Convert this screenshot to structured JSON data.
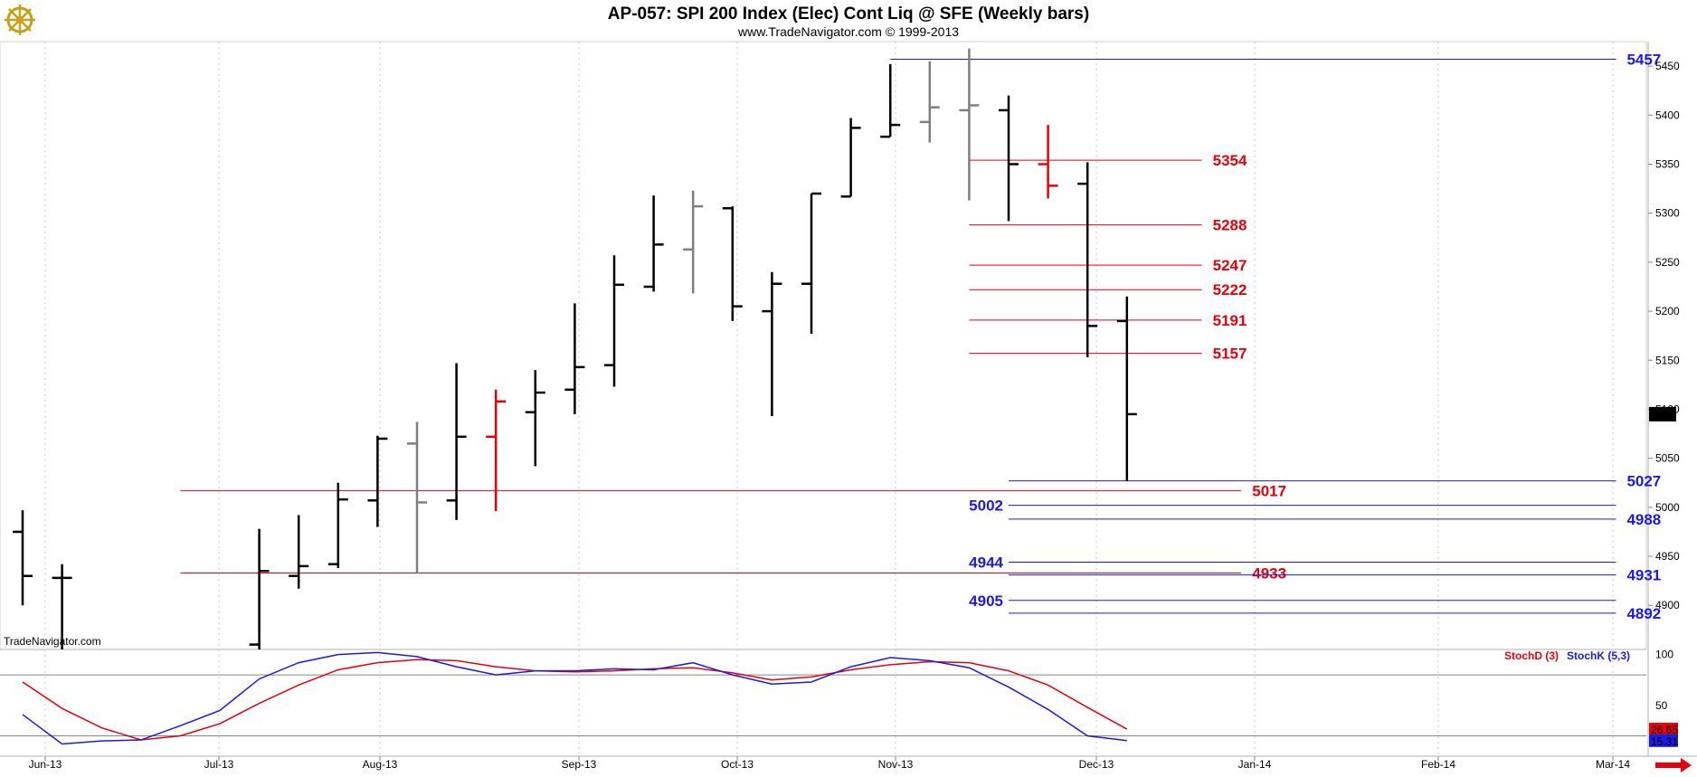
{
  "header": {
    "title": "AP-057:  SPI 200 Index (Elec) Cont Liq @ SFE  (Weekly bars)",
    "subtitle": "www.TradeNavigator.com © 1999-2013",
    "watermark": "TradeNavigator.com"
  },
  "icons": {
    "logo": "ship-wheel-logo-icon",
    "scroll": "red-arrow-right-icon"
  },
  "colors": {
    "bar_up": "#000000",
    "bar_gray": "#7f7f7f",
    "bar_red": "#e8000b",
    "level_red": "#e8000b",
    "level_blue": "#1a1ae6",
    "stoch_d": "#e8000b",
    "stoch_k": "#1a1ae6",
    "grid": "#c8c8c8",
    "last_box": "#000000"
  },
  "chart_data": {
    "type": "ohlc",
    "price_axis": {
      "ylim": [
        4855,
        5475
      ],
      "ticks": [
        "5450",
        "5400",
        "5350",
        "5300",
        "5250",
        "5200",
        "5150",
        "5100",
        "5050",
        "5000",
        "4950",
        "4900"
      ]
    },
    "x_labels": [
      "Jun-13",
      "Jul-13",
      "Aug-13",
      "Sep-13",
      "Oct-13",
      "Nov-13",
      "Dec-13",
      "Jan-14",
      "Feb-14",
      "Mar-14"
    ],
    "last_price": {
      "label": "5095",
      "value": 5095
    },
    "bars": [
      {
        "week": 0,
        "open": 4975,
        "high": 4997,
        "low": 4900,
        "close": 4930,
        "color": "black"
      },
      {
        "week": 1,
        "open": 4928,
        "high": 4942,
        "low": 4855,
        "close": 4928,
        "color": "black"
      },
      {
        "week": 6,
        "open": 4860,
        "high": 4978,
        "low": 4855,
        "close": 4935,
        "color": "black"
      },
      {
        "week": 7,
        "open": 4930,
        "high": 4992,
        "low": 4917,
        "close": 4940,
        "color": "black"
      },
      {
        "week": 8,
        "open": 4942,
        "high": 5025,
        "low": 4938,
        "close": 5008,
        "color": "black"
      },
      {
        "week": 9,
        "open": 5007,
        "high": 5073,
        "low": 4980,
        "close": 5070,
        "color": "black"
      },
      {
        "week": 10,
        "open": 5065,
        "high": 5087,
        "low": 4933,
        "close": 5005,
        "color": "gray"
      },
      {
        "week": 11,
        "open": 5007,
        "high": 5147,
        "low": 4987,
        "close": 5072,
        "color": "black"
      },
      {
        "week": 12,
        "open": 5072,
        "high": 5120,
        "low": 4996,
        "close": 5108,
        "color": "red"
      },
      {
        "week": 13,
        "open": 5097,
        "high": 5140,
        "low": 5042,
        "close": 5117,
        "color": "black"
      },
      {
        "week": 14,
        "open": 5120,
        "high": 5208,
        "low": 5095,
        "close": 5143,
        "color": "black"
      },
      {
        "week": 15,
        "open": 5145,
        "high": 5257,
        "low": 5123,
        "close": 5227,
        "color": "black"
      },
      {
        "week": 16,
        "open": 5225,
        "high": 5318,
        "low": 5220,
        "close": 5268,
        "color": "black"
      },
      {
        "week": 17,
        "open": 5263,
        "high": 5323,
        "low": 5218,
        "close": 5307,
        "color": "gray"
      },
      {
        "week": 18,
        "open": 5305,
        "high": 5307,
        "low": 5190,
        "close": 5205,
        "color": "black"
      },
      {
        "week": 19,
        "open": 5200,
        "high": 5240,
        "low": 5093,
        "close": 5228,
        "color": "black"
      },
      {
        "week": 20,
        "open": 5228,
        "high": 5320,
        "low": 5177,
        "close": 5320,
        "color": "black"
      },
      {
        "week": 21,
        "open": 5317,
        "high": 5397,
        "low": 5317,
        "close": 5387,
        "color": "black"
      },
      {
        "week": 22,
        "open": 5378,
        "high": 5452,
        "low": 5378,
        "close": 5390,
        "color": "black"
      },
      {
        "week": 23,
        "open": 5393,
        "high": 5455,
        "low": 5372,
        "close": 5408,
        "color": "gray"
      },
      {
        "week": 24,
        "open": 5405,
        "high": 5468,
        "low": 5313,
        "close": 5410,
        "color": "gray"
      },
      {
        "week": 25,
        "open": 5405,
        "high": 5420,
        "low": 5292,
        "close": 5350,
        "color": "black"
      },
      {
        "week": 26,
        "open": 5350,
        "high": 5390,
        "low": 5315,
        "close": 5328,
        "color": "red"
      },
      {
        "week": 27,
        "open": 5330,
        "high": 5352,
        "low": 5153,
        "close": 5185,
        "color": "black"
      },
      {
        "week": 28,
        "open": 5190,
        "high": 5215,
        "low": 5027,
        "close": 5095,
        "color": "black"
      }
    ],
    "levels_red": [
      {
        "label": "5354",
        "value": 5354,
        "from_week": 24,
        "to_week": 29.9
      },
      {
        "label": "5288",
        "value": 5288,
        "from_week": 24,
        "to_week": 29.9
      },
      {
        "label": "5247",
        "value": 5247,
        "from_week": 24,
        "to_week": 29.9
      },
      {
        "label": "5222",
        "value": 5222,
        "from_week": 24,
        "to_week": 29.9
      },
      {
        "label": "5191",
        "value": 5191,
        "from_week": 24,
        "to_week": 29.9
      },
      {
        "label": "5157",
        "value": 5157,
        "from_week": 24,
        "to_week": 29.9
      },
      {
        "label": "5017",
        "value": 5017,
        "from_week": 4,
        "to_week": 30.9
      },
      {
        "label": "4933",
        "value": 4933,
        "from_week": 4,
        "to_week": 30.9
      }
    ],
    "levels_blue": [
      {
        "label": "5457",
        "value": 5457,
        "side": "right",
        "from_week": 22,
        "to_week": 40.4
      },
      {
        "label": "5027",
        "value": 5027,
        "side": "right",
        "from_week": 25,
        "to_week": 40.4
      },
      {
        "label": "5002",
        "value": 5002,
        "side": "left",
        "from_week": 25,
        "to_week": 40.4
      },
      {
        "label": "4988",
        "value": 4988,
        "side": "right",
        "from_week": 25,
        "to_week": 40.4
      },
      {
        "label": "4944",
        "value": 4944,
        "side": "left",
        "from_week": 25,
        "to_week": 40.4
      },
      {
        "label": "4931",
        "value": 4931,
        "side": "right",
        "from_week": 25,
        "to_week": 40.4
      },
      {
        "label": "4905",
        "value": 4905,
        "side": "left",
        "from_week": 25,
        "to_week": 40.4
      },
      {
        "label": "4892",
        "value": 4892,
        "side": "right",
        "from_week": 25,
        "to_week": 40.4
      }
    ],
    "stochastic": {
      "ylim": [
        0,
        105
      ],
      "ticks": [
        "100",
        "50"
      ],
      "legend_d": "StochD (3)",
      "legend_k": "StochK (5,3)",
      "last_d_label": "26.65",
      "last_d": 26.65,
      "last_k_label": "15.31",
      "last_k": 15.31,
      "stoch_d": [
        {
          "w": 0,
          "v": 73
        },
        {
          "w": 1,
          "v": 47
        },
        {
          "w": 2,
          "v": 28
        },
        {
          "w": 3,
          "v": 16
        },
        {
          "w": 4,
          "v": 20
        },
        {
          "w": 5,
          "v": 32
        },
        {
          "w": 6,
          "v": 52
        },
        {
          "w": 7,
          "v": 70
        },
        {
          "w": 8,
          "v": 85
        },
        {
          "w": 9,
          "v": 92
        },
        {
          "w": 10,
          "v": 95
        },
        {
          "w": 11,
          "v": 94
        },
        {
          "w": 12,
          "v": 88
        },
        {
          "w": 13,
          "v": 84
        },
        {
          "w": 14,
          "v": 83
        },
        {
          "w": 15,
          "v": 84
        },
        {
          "w": 16,
          "v": 86
        },
        {
          "w": 17,
          "v": 87
        },
        {
          "w": 18,
          "v": 82
        },
        {
          "w": 19,
          "v": 75
        },
        {
          "w": 20,
          "v": 78
        },
        {
          "w": 21,
          "v": 85
        },
        {
          "w": 22,
          "v": 90
        },
        {
          "w": 23,
          "v": 93
        },
        {
          "w": 24,
          "v": 92
        },
        {
          "w": 25,
          "v": 84
        },
        {
          "w": 26,
          "v": 70
        },
        {
          "w": 27,
          "v": 48
        },
        {
          "w": 28,
          "v": 26.65
        }
      ],
      "stoch_k": [
        {
          "w": 0,
          "v": 41
        },
        {
          "w": 1,
          "v": 12
        },
        {
          "w": 2,
          "v": 15
        },
        {
          "w": 3,
          "v": 16
        },
        {
          "w": 4,
          "v": 30
        },
        {
          "w": 5,
          "v": 45
        },
        {
          "w": 6,
          "v": 76
        },
        {
          "w": 7,
          "v": 92
        },
        {
          "w": 8,
          "v": 100
        },
        {
          "w": 9,
          "v": 102
        },
        {
          "w": 10,
          "v": 98
        },
        {
          "w": 11,
          "v": 88
        },
        {
          "w": 12,
          "v": 80
        },
        {
          "w": 13,
          "v": 84
        },
        {
          "w": 14,
          "v": 84
        },
        {
          "w": 15,
          "v": 86
        },
        {
          "w": 16,
          "v": 85
        },
        {
          "w": 17,
          "v": 92
        },
        {
          "w": 18,
          "v": 80
        },
        {
          "w": 19,
          "v": 71
        },
        {
          "w": 20,
          "v": 73
        },
        {
          "w": 21,
          "v": 88
        },
        {
          "w": 22,
          "v": 97
        },
        {
          "w": 23,
          "v": 94
        },
        {
          "w": 24,
          "v": 87
        },
        {
          "w": 25,
          "v": 68
        },
        {
          "w": 26,
          "v": 46
        },
        {
          "w": 27,
          "v": 20
        },
        {
          "w": 28,
          "v": 15.31
        }
      ]
    }
  }
}
